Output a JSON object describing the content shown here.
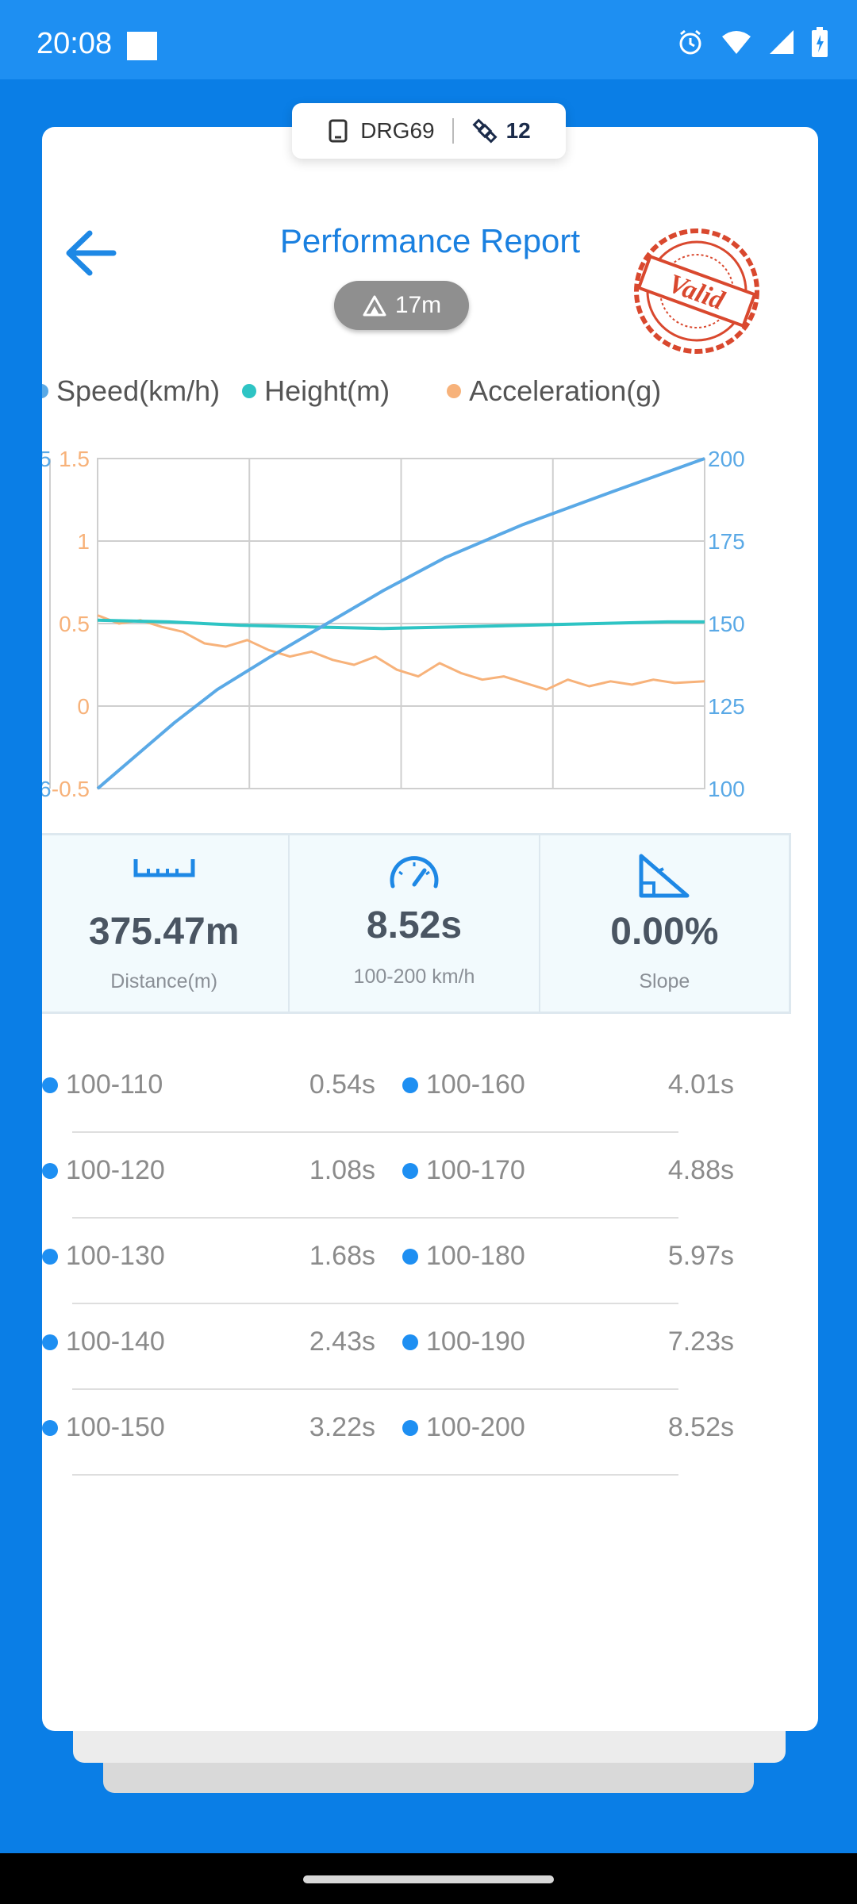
{
  "status_bar": {
    "time": "20:08"
  },
  "device": {
    "name": "DRG69",
    "satellites": "12"
  },
  "header": {
    "title": "Performance Report",
    "height_badge": "17m",
    "stamp_text": "Valid"
  },
  "legend": [
    {
      "name": "Speed(km/h)",
      "color": "#5aa9e6"
    },
    {
      "name": "Height(m)",
      "color": "#2ec4c4"
    },
    {
      "name": "Acceleration(g)",
      "color": "#f7b27a"
    }
  ],
  "chart_data": {
    "type": "line",
    "x_range": [
      0,
      8.52
    ],
    "y_left": {
      "ticks": [
        "1.5",
        "1",
        "0.5",
        "0",
        "-0.5"
      ],
      "range": [
        -0.5,
        1.5
      ],
      "color": "#f7b27a"
    },
    "y_right": {
      "ticks": [
        "200",
        "175",
        "150",
        "125",
        "100"
      ],
      "range": [
        100,
        200
      ],
      "color": "#5aa9e6"
    },
    "y_left_cut_labels": [
      "5",
      "6"
    ],
    "grid": true,
    "series": [
      {
        "name": "Speed(km/h)",
        "axis": "right",
        "color": "#5aa9e6",
        "x": [
          0,
          0.54,
          1.08,
          1.68,
          2.43,
          3.22,
          4.01,
          4.88,
          5.97,
          7.23,
          8.52
        ],
        "y": [
          100,
          110,
          120,
          130,
          140,
          150,
          160,
          170,
          180,
          190,
          200
        ]
      },
      {
        "name": "Height(m)",
        "axis": "left",
        "color": "#2ec4c4",
        "x": [
          0,
          1,
          2,
          3,
          4,
          5,
          6,
          7,
          8,
          8.52
        ],
        "y": [
          0.52,
          0.51,
          0.49,
          0.48,
          0.47,
          0.48,
          0.49,
          0.5,
          0.51,
          0.51
        ]
      },
      {
        "name": "Acceleration(g)",
        "axis": "left",
        "color": "#f7b27a",
        "x": [
          0,
          0.3,
          0.6,
          0.9,
          1.2,
          1.5,
          1.8,
          2.1,
          2.4,
          2.7,
          3.0,
          3.3,
          3.6,
          3.9,
          4.2,
          4.5,
          4.8,
          5.1,
          5.4,
          5.7,
          6.0,
          6.3,
          6.6,
          6.9,
          7.2,
          7.5,
          7.8,
          8.1,
          8.52
        ],
        "y": [
          0.55,
          0.5,
          0.52,
          0.48,
          0.45,
          0.38,
          0.36,
          0.4,
          0.34,
          0.3,
          0.33,
          0.28,
          0.25,
          0.3,
          0.22,
          0.18,
          0.26,
          0.2,
          0.16,
          0.18,
          0.14,
          0.1,
          0.16,
          0.12,
          0.15,
          0.13,
          0.16,
          0.14,
          0.15
        ]
      }
    ]
  },
  "stats": [
    {
      "value": "375.47m",
      "label": "Distance(m)"
    },
    {
      "value": "8.52s",
      "label": "100-200 km/h"
    },
    {
      "value": "0.00%",
      "label": "Slope"
    }
  ],
  "splits": [
    {
      "left_range": "100-110",
      "left_time": "0.54s",
      "right_range": "100-160",
      "right_time": "4.01s"
    },
    {
      "left_range": "100-120",
      "left_time": "1.08s",
      "right_range": "100-170",
      "right_time": "4.88s"
    },
    {
      "left_range": "100-130",
      "left_time": "1.68s",
      "right_range": "100-180",
      "right_time": "5.97s"
    },
    {
      "left_range": "100-140",
      "left_time": "2.43s",
      "right_range": "100-190",
      "right_time": "7.23s"
    },
    {
      "left_range": "100-150",
      "left_time": "3.22s",
      "right_range": "100-200",
      "right_time": "8.52s"
    }
  ],
  "icons": {
    "back": "arrow-left-icon",
    "device": "device-icon",
    "satellite": "satellite-icon",
    "mountain": "mountain-icon",
    "distance": "ruler-icon",
    "time": "speedometer-icon",
    "slope": "slope-icon"
  }
}
